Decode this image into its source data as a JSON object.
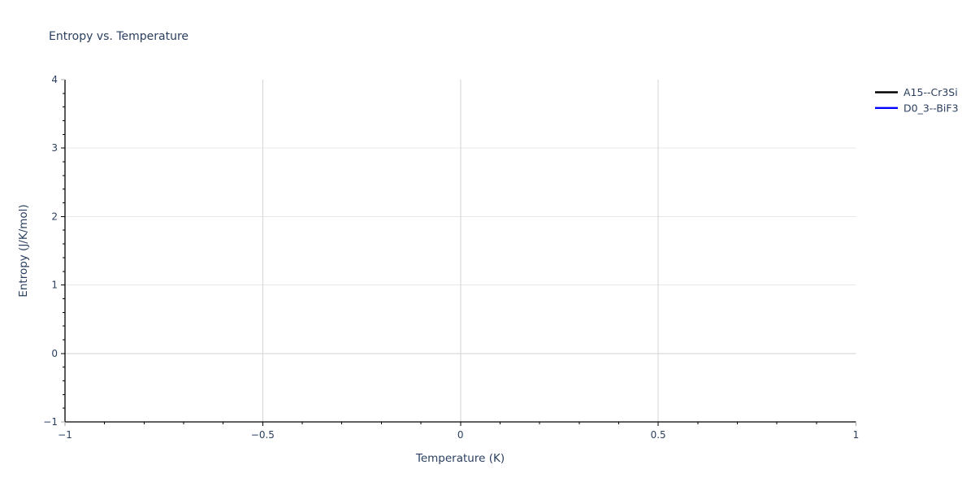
{
  "chart_data": {
    "type": "line",
    "title": "Entropy vs. Temperature",
    "xlabel": "Temperature (K)",
    "ylabel": "Entropy (J/K/mol)",
    "xlim": [
      -1,
      1
    ],
    "ylim": [
      -1,
      4
    ],
    "x_ticks": [
      -1,
      -0.5,
      0,
      0.5,
      1
    ],
    "y_ticks": [
      -1,
      0,
      1,
      2,
      3,
      4
    ],
    "x_minor_tick_step": 0.1,
    "y_minor_tick_step": 0.2,
    "grid": true,
    "legend_position": "top-right-outside",
    "series": [
      {
        "name": "A15--Cr3Si",
        "color": "#000000",
        "x": [],
        "y": []
      },
      {
        "name": "D0_3--BiF3",
        "color": "#0000ff",
        "x": [],
        "y": []
      }
    ],
    "colors": {
      "text": "#2a3f5f",
      "axis_line": "#000000",
      "grid_horizontal": "#e8e8e8",
      "grid_vertical": "#d6d6d6",
      "zero_line": "#d2d2d2",
      "tick": "#000000",
      "edge_tick": "#a8a8a8",
      "background": "#ffffff"
    }
  }
}
